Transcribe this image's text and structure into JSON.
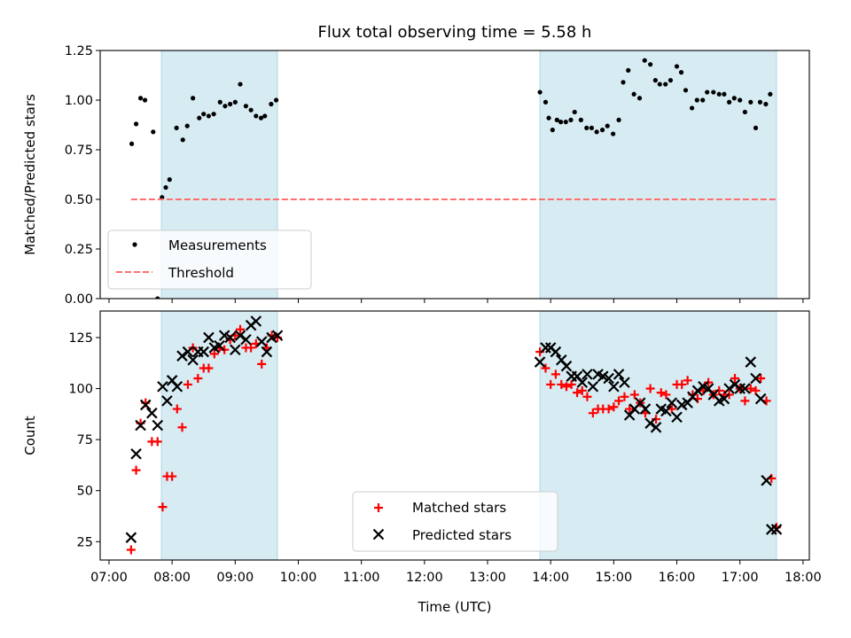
{
  "figure": {
    "title": "Flux total observing time = 5.58 h",
    "xlabel": "Time (UTC)"
  },
  "chart_data": [
    {
      "type": "scatter",
      "title": "Flux total observing time = 5.58 h",
      "ylabel": "Matched/Predicted stars",
      "x_unit": "hours UTC",
      "xlim": [
        6.86,
        18.1
      ],
      "ylim": [
        0,
        1.25
      ],
      "yticks": [
        0.0,
        0.25,
        0.5,
        0.75,
        1.0,
        1.25
      ],
      "ytick_labels": [
        "0.00",
        "0.25",
        "0.50",
        "0.75",
        "1.00",
        "1.25"
      ],
      "xticks": [
        7,
        8,
        9,
        10,
        11,
        12,
        13,
        14,
        15,
        16,
        17,
        18
      ],
      "shaded_intervals": [
        [
          7.83,
          9.67
        ],
        [
          13.83,
          17.58
        ]
      ],
      "legend": {
        "position": "lower-left",
        "entries": [
          "Measurements",
          "Threshold"
        ]
      },
      "series": [
        {
          "name": "Measurements",
          "marker": "dot",
          "color": "#000000",
          "x": [
            7.36,
            7.43,
            7.5,
            7.57,
            7.7,
            7.77,
            7.84,
            7.9,
            7.96,
            8.07,
            8.17,
            8.24,
            8.33,
            8.43,
            8.5,
            8.58,
            8.66,
            8.76,
            8.84,
            8.92,
            9.0,
            9.08,
            9.17,
            9.25,
            9.33,
            9.41,
            9.47,
            9.57,
            9.65,
            13.83,
            13.92,
            13.97,
            14.03,
            14.1,
            14.16,
            14.24,
            14.32,
            14.38,
            14.48,
            14.57,
            14.65,
            14.73,
            14.82,
            14.9,
            14.99,
            15.08,
            15.15,
            15.23,
            15.32,
            15.41,
            15.49,
            15.58,
            15.66,
            15.73,
            15.82,
            15.9,
            16.0,
            16.07,
            16.14,
            16.24,
            16.32,
            16.41,
            16.48,
            16.58,
            16.67,
            16.75,
            16.83,
            16.91,
            17.0,
            17.08,
            17.17,
            17.25,
            17.32,
            17.41,
            17.48
          ],
          "y": [
            0.78,
            0.88,
            1.01,
            1.0,
            0.84,
            0.0,
            0.51,
            0.56,
            0.6,
            0.86,
            0.8,
            0.87,
            1.01,
            0.91,
            0.93,
            0.92,
            0.93,
            0.99,
            0.97,
            0.98,
            0.99,
            1.08,
            0.97,
            0.95,
            0.92,
            0.91,
            0.92,
            0.98,
            1.0,
            1.04,
            0.99,
            0.91,
            0.85,
            0.9,
            0.89,
            0.89,
            0.9,
            0.94,
            0.9,
            0.86,
            0.86,
            0.84,
            0.85,
            0.87,
            0.83,
            0.9,
            1.09,
            1.15,
            1.03,
            1.01,
            1.2,
            1.18,
            1.1,
            1.08,
            1.08,
            1.1,
            1.17,
            1.14,
            1.05,
            0.96,
            1.0,
            1.0,
            1.04,
            1.04,
            1.03,
            1.03,
            0.99,
            1.01,
            1.0,
            0.94,
            0.99,
            0.86,
            0.99,
            0.98,
            1.03
          ]
        },
        {
          "name": "Threshold",
          "style": "dashed",
          "color": "#ff6f6f",
          "x": [
            7.35,
            17.58
          ],
          "y": [
            0.5,
            0.5
          ]
        }
      ]
    },
    {
      "type": "scatter",
      "ylabel": "Count",
      "xlabel": "Time (UTC)",
      "x_unit": "hours UTC",
      "xlim": [
        6.86,
        18.1
      ],
      "ylim": [
        16,
        138
      ],
      "yticks": [
        25,
        50,
        75,
        100,
        125
      ],
      "ytick_labels": [
        "25",
        "50",
        "75",
        "100",
        "125"
      ],
      "xticks": [
        7,
        8,
        9,
        10,
        11,
        12,
        13,
        14,
        15,
        16,
        17,
        18
      ],
      "xtick_labels": [
        "07:00",
        "08:00",
        "09:00",
        "10:00",
        "11:00",
        "12:00",
        "13:00",
        "14:00",
        "15:00",
        "16:00",
        "17:00",
        "18:00"
      ],
      "shaded_intervals": [
        [
          7.83,
          9.67
        ],
        [
          13.83,
          17.58
        ]
      ],
      "legend": {
        "position": "lower-center",
        "entries": [
          "Matched stars",
          "Predicted stars"
        ]
      },
      "series": [
        {
          "name": "Matched stars",
          "marker": "plus",
          "color": "#ff0000",
          "x": [
            7.35,
            7.43,
            7.5,
            7.58,
            7.68,
            7.77,
            7.85,
            7.92,
            8.0,
            8.08,
            8.16,
            8.25,
            8.33,
            8.41,
            8.5,
            8.58,
            8.67,
            8.75,
            8.83,
            8.92,
            9.0,
            9.08,
            9.17,
            9.25,
            9.33,
            9.42,
            9.5,
            9.58,
            9.67,
            13.83,
            13.92,
            14.0,
            14.08,
            14.17,
            14.25,
            14.33,
            14.42,
            14.5,
            14.58,
            14.67,
            14.75,
            14.83,
            14.92,
            15.0,
            15.08,
            15.17,
            15.25,
            15.33,
            15.42,
            15.5,
            15.58,
            15.67,
            15.75,
            15.83,
            15.92,
            16.0,
            16.08,
            16.17,
            16.25,
            16.33,
            16.42,
            16.5,
            16.58,
            16.67,
            16.75,
            16.83,
            16.92,
            17.0,
            17.08,
            17.17,
            17.25,
            17.33,
            17.42,
            17.5,
            17.58
          ],
          "y": [
            21,
            60,
            83,
            93,
            74,
            74,
            42,
            57,
            57,
            90,
            81,
            102,
            120,
            105,
            110,
            110,
            117,
            120,
            119,
            124,
            126,
            129,
            120,
            120,
            122,
            112,
            120,
            126,
            125,
            118,
            110,
            102,
            107,
            102,
            101,
            102,
            98,
            99,
            96,
            88,
            90,
            90,
            90,
            91,
            94,
            96,
            90,
            97,
            93,
            88,
            100,
            85,
            98,
            97,
            90,
            102,
            102,
            104,
            97,
            95,
            99,
            103,
            97,
            99,
            97,
            97,
            105,
            100,
            94,
            100,
            99,
            105,
            94,
            56,
            32
          ]
        },
        {
          "name": "Predicted stars",
          "marker": "x",
          "color": "#000000",
          "x": [
            7.35,
            7.43,
            7.5,
            7.58,
            7.68,
            7.77,
            7.85,
            7.92,
            8.0,
            8.08,
            8.16,
            8.25,
            8.33,
            8.41,
            8.5,
            8.58,
            8.67,
            8.75,
            8.83,
            8.92,
            9.0,
            9.08,
            9.17,
            9.25,
            9.33,
            9.42,
            9.5,
            9.58,
            9.67,
            13.83,
            13.92,
            14.0,
            14.08,
            14.17,
            14.25,
            14.33,
            14.42,
            14.5,
            14.58,
            14.67,
            14.75,
            14.83,
            14.92,
            15.0,
            15.08,
            15.17,
            15.25,
            15.33,
            15.42,
            15.5,
            15.58,
            15.67,
            15.75,
            15.83,
            15.92,
            16.0,
            16.08,
            16.17,
            16.25,
            16.33,
            16.42,
            16.5,
            16.58,
            16.67,
            16.75,
            16.83,
            16.92,
            17.0,
            17.08,
            17.17,
            17.25,
            17.33,
            17.42,
            17.5,
            17.58
          ],
          "y": [
            27,
            68,
            82,
            92,
            88,
            82,
            101,
            94,
            104,
            101,
            116,
            118,
            114,
            118,
            118,
            125,
            120,
            121,
            126,
            125,
            119,
            126,
            124,
            131,
            133,
            123,
            118,
            125,
            126,
            113,
            120,
            120,
            118,
            114,
            111,
            106,
            106,
            103,
            107,
            101,
            107,
            106,
            105,
            101,
            107,
            103,
            87,
            90,
            93,
            90,
            83,
            81,
            90,
            89,
            93,
            86,
            92,
            93,
            96,
            99,
            101,
            100,
            97,
            94,
            95,
            100,
            102,
            100,
            100,
            113,
            105,
            95,
            55,
            31,
            31
          ]
        }
      ]
    }
  ]
}
